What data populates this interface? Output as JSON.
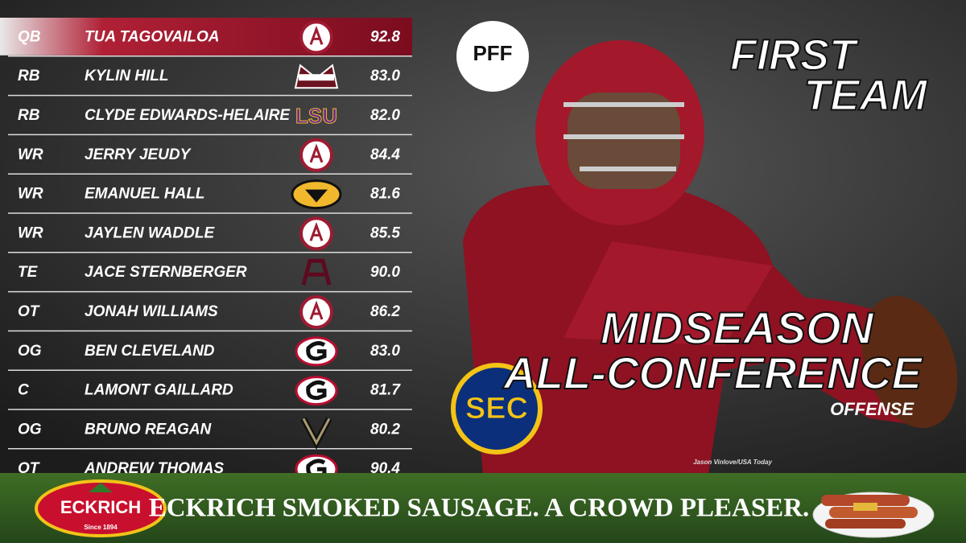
{
  "table": {
    "rows": [
      {
        "position": "QB",
        "name": "TUA TAGOVAILOA",
        "grade": "92.8"
      },
      {
        "position": "RB",
        "name": "KYLIN HILL",
        "grade": "83.0"
      },
      {
        "position": "RB",
        "name": "CLYDE EDWARDS-HELAIRE",
        "grade": "82.0",
        "logo_text": "LSU"
      },
      {
        "position": "WR",
        "name": "JERRY JEUDY",
        "grade": "84.4"
      },
      {
        "position": "WR",
        "name": "EMANUEL HALL",
        "grade": "81.6"
      },
      {
        "position": "WR",
        "name": "JAYLEN WADDLE",
        "grade": "85.5"
      },
      {
        "position": "TE",
        "name": "JACE STERNBERGER",
        "grade": "90.0"
      },
      {
        "position": "OT",
        "name": "JONAH WILLIAMS",
        "grade": "86.2"
      },
      {
        "position": "OG",
        "name": "BEN CLEVELAND",
        "grade": "83.0"
      },
      {
        "position": "C",
        "name": "LAMONT GAILLARD",
        "grade": "81.7"
      },
      {
        "position": "OG",
        "name": "BRUNO REAGAN",
        "grade": "80.2"
      },
      {
        "position": "OT",
        "name": "ANDREW THOMAS",
        "grade": "90.4"
      }
    ]
  },
  "brand": {
    "pff": "PFF",
    "sec": "SEC"
  },
  "header": {
    "line1": "FIRST",
    "line2": "TEAM"
  },
  "headline": {
    "line1": "MIDSEASON",
    "line2": "ALL-CONFERENCE",
    "subtitle": "OFFENSE"
  },
  "photo_credit": "Jason Vinlove/USA Today",
  "banner": {
    "logo": "ECKRICH",
    "since": "Since 1894",
    "slogan": "ECKRICH SMOKED SAUSAGE. A CROWD PLEASER."
  }
}
